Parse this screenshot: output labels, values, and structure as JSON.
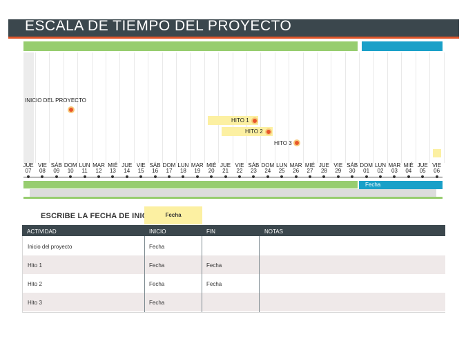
{
  "title": "ESCALA DE TIEMPO DEL PROYECTO",
  "colors": {
    "header": "#3b474d",
    "accent_orange": "#e0562a",
    "green": "#97cd6f",
    "blue": "#1aa0c8",
    "yellow": "#fcf0a2"
  },
  "milestones": [
    {
      "label": "INICIO DEL PROYECTO"
    },
    {
      "label": "HITO 1"
    },
    {
      "label": "HITO 2"
    },
    {
      "label": "HITO 3"
    }
  ],
  "days": [
    {
      "wd": "JUE",
      "d": "07"
    },
    {
      "wd": "VIE",
      "d": "08"
    },
    {
      "wd": "SÁB",
      "d": "09"
    },
    {
      "wd": "DOM",
      "d": "10"
    },
    {
      "wd": "LUN",
      "d": "11"
    },
    {
      "wd": "MAR",
      "d": "12"
    },
    {
      "wd": "MIÉ",
      "d": "13"
    },
    {
      "wd": "JUE",
      "d": "14"
    },
    {
      "wd": "VIE",
      "d": "15"
    },
    {
      "wd": "SÁB",
      "d": "16"
    },
    {
      "wd": "DOM",
      "d": "17"
    },
    {
      "wd": "LUN",
      "d": "18"
    },
    {
      "wd": "MAR",
      "d": "19"
    },
    {
      "wd": "MIÉ",
      "d": "20"
    },
    {
      "wd": "JUE",
      "d": "21"
    },
    {
      "wd": "VIE",
      "d": "22"
    },
    {
      "wd": "SÁB",
      "d": "23"
    },
    {
      "wd": "DOM",
      "d": "24"
    },
    {
      "wd": "LUN",
      "d": "25"
    },
    {
      "wd": "MAR",
      "d": "26"
    },
    {
      "wd": "MIÉ",
      "d": "27"
    },
    {
      "wd": "JUE",
      "d": "28"
    },
    {
      "wd": "VIE",
      "d": "29"
    },
    {
      "wd": "SÁB",
      "d": "30"
    },
    {
      "wd": "DOM",
      "d": "01"
    },
    {
      "wd": "LUN",
      "d": "02"
    },
    {
      "wd": "MAR",
      "d": "03"
    },
    {
      "wd": "MIÉ",
      "d": "04"
    },
    {
      "wd": "JUE",
      "d": "05"
    },
    {
      "wd": "VIE",
      "d": "06"
    }
  ],
  "bottom_bar_label": "Fecha",
  "start_date": {
    "label": "ESCRIBE LA FECHA DE INICIO:",
    "value": "Fecha"
  },
  "table": {
    "headers": [
      "ACTIVIDAD",
      "INICIO",
      "FIN",
      "NOTAS"
    ],
    "rows": [
      {
        "actividad": "Inicio del proyecto",
        "inicio": "Fecha",
        "fin": "",
        "notas": ""
      },
      {
        "actividad": "Hito 1",
        "inicio": "Fecha",
        "fin": "Fecha",
        "notas": ""
      },
      {
        "actividad": "Hito 2",
        "inicio": "Fecha",
        "fin": "Fecha",
        "notas": ""
      },
      {
        "actividad": "Hito 3",
        "inicio": "Fecha",
        "fin": "",
        "notas": ""
      }
    ]
  }
}
